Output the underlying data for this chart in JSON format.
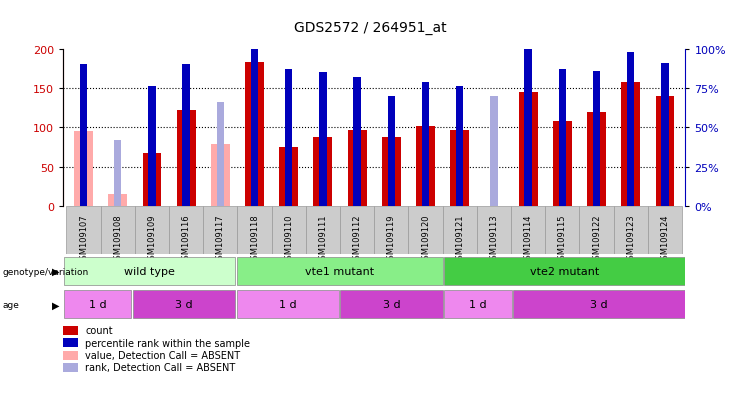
{
  "title": "GDS2572 / 264951_at",
  "samples": [
    "GSM109107",
    "GSM109108",
    "GSM109109",
    "GSM109116",
    "GSM109117",
    "GSM109118",
    "GSM109110",
    "GSM109111",
    "GSM109112",
    "GSM109119",
    "GSM109120",
    "GSM109121",
    "GSM109113",
    "GSM109114",
    "GSM109115",
    "GSM109122",
    "GSM109123",
    "GSM109124"
  ],
  "count_values": [
    null,
    null,
    67,
    122,
    null,
    183,
    75,
    88,
    96,
    88,
    102,
    97,
    null,
    145,
    108,
    120,
    158,
    140
  ],
  "count_absent": [
    95,
    15,
    null,
    null,
    79,
    null,
    null,
    null,
    null,
    null,
    null,
    null,
    null,
    null,
    null,
    null,
    null,
    null
  ],
  "rank_values": [
    90,
    null,
    76,
    90,
    null,
    101,
    87,
    85,
    82,
    70,
    79,
    76,
    null,
    101,
    87,
    86,
    98,
    91
  ],
  "rank_absent": [
    null,
    42,
    null,
    null,
    66,
    null,
    null,
    null,
    null,
    null,
    null,
    null,
    70,
    null,
    null,
    null,
    null,
    null
  ],
  "ylim_left": [
    0,
    200
  ],
  "ylim_right": [
    0,
    100
  ],
  "yticks_left": [
    0,
    50,
    100,
    150,
    200
  ],
  "yticks_right": [
    0,
    25,
    50,
    75,
    100
  ],
  "bar_color_count": "#cc0000",
  "bar_color_count_absent": "#ffaaaa",
  "bar_color_rank": "#0000bb",
  "bar_color_rank_absent": "#aaaadd",
  "left_axis_color": "#cc0000",
  "right_axis_color": "#0000bb",
  "genotype_groups": [
    {
      "label": "wild type",
      "start": 0,
      "end": 5,
      "color": "#ccffcc"
    },
    {
      "label": "vte1 mutant",
      "start": 5,
      "end": 11,
      "color": "#88ee88"
    },
    {
      "label": "vte2 mutant",
      "start": 11,
      "end": 18,
      "color": "#44cc44"
    }
  ],
  "age_groups": [
    {
      "label": "1 d",
      "start": 0,
      "end": 2,
      "color": "#ee88ee"
    },
    {
      "label": "3 d",
      "start": 2,
      "end": 5,
      "color": "#cc44cc"
    },
    {
      "label": "1 d",
      "start": 5,
      "end": 8,
      "color": "#ee88ee"
    },
    {
      "label": "3 d",
      "start": 8,
      "end": 11,
      "color": "#cc44cc"
    },
    {
      "label": "1 d",
      "start": 11,
      "end": 13,
      "color": "#ee88ee"
    },
    {
      "label": "3 d",
      "start": 13,
      "end": 18,
      "color": "#cc44cc"
    }
  ],
  "legend_items": [
    {
      "color": "#cc0000",
      "label": "count"
    },
    {
      "color": "#0000bb",
      "label": "percentile rank within the sample"
    },
    {
      "color": "#ffaaaa",
      "label": "value, Detection Call = ABSENT"
    },
    {
      "color": "#aaaadd",
      "label": "rank, Detection Call = ABSENT"
    }
  ]
}
